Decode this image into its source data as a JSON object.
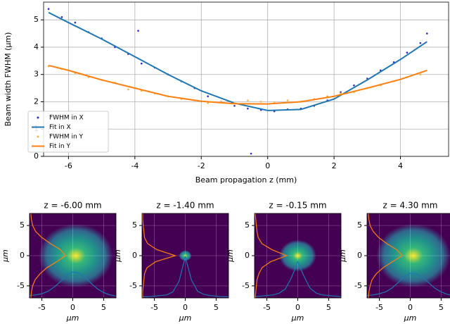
{
  "chart_data": [
    {
      "type": "scatter",
      "xlabel": "Beam propagation z (mm)",
      "ylabel": "Beam width FWHM (μm)",
      "xlim": [
        -6.75,
        5.45
      ],
      "ylim": [
        0,
        5.65
      ],
      "xticks": [
        -6,
        -4,
        -2,
        0,
        2,
        4
      ],
      "yticks": [
        0,
        1,
        2,
        3,
        4,
        5
      ],
      "grid": true,
      "legend": "lower left",
      "series": [
        {
          "name": "FWHM in X",
          "style": "dots",
          "color": "#2a2ad0",
          "x": [
            -6.6,
            -6.2,
            -5.8,
            -5.4,
            -5,
            -4.6,
            -4.2,
            -3.9,
            -3.8,
            -3.4,
            -3,
            -2.6,
            -2.2,
            -1.8,
            -1.4,
            -1,
            -0.6,
            -0.5,
            -0.2,
            0.2,
            0.6,
            1,
            1.4,
            1.8,
            2.2,
            2.6,
            3,
            3.4,
            3.8,
            4.2,
            4.6,
            4.8
          ],
          "values": [
            5.4,
            5.1,
            4.9,
            4.55,
            4.32,
            4.0,
            3.75,
            4.6,
            3.4,
            3.25,
            3.0,
            2.75,
            2.5,
            2.2,
            2.0,
            1.85,
            1.75,
            0.1,
            1.7,
            1.65,
            1.72,
            1.75,
            1.85,
            2.05,
            2.35,
            2.6,
            2.85,
            3.15,
            3.45,
            3.8,
            4.15,
            4.5
          ]
        },
        {
          "name": "Fit in X",
          "style": "line",
          "color": "#1f77b4",
          "x": [
            -6.6,
            -6,
            -5,
            -4,
            -3,
            -2,
            -1,
            0,
            1,
            2,
            3,
            4,
            4.8
          ],
          "values": [
            5.27,
            4.9,
            4.3,
            3.65,
            3.0,
            2.4,
            1.95,
            1.68,
            1.72,
            2.1,
            2.8,
            3.55,
            4.2
          ]
        },
        {
          "name": "FWHM in Y",
          "style": "dots",
          "color": "#ffb040",
          "x": [
            -6.6,
            -6.2,
            -5.8,
            -5.4,
            -5,
            -4.6,
            -4.2,
            -3.8,
            -3.4,
            -3,
            -2.6,
            -2.2,
            -1.8,
            -1.4,
            -1,
            -0.6,
            -0.2,
            0.2,
            0.6,
            1,
            1.4,
            1.8,
            2.2,
            2.6,
            3,
            3.4,
            3.8,
            4.2,
            4.6
          ],
          "values": [
            3.3,
            3.2,
            3.05,
            2.9,
            2.8,
            2.7,
            2.45,
            2.4,
            2.3,
            2.2,
            2.1,
            2.05,
            1.95,
            2.0,
            1.95,
            2.05,
            2.0,
            1.98,
            2.05,
            2.0,
            2.1,
            2.2,
            2.3,
            2.35,
            2.5,
            2.6,
            2.75,
            2.9,
            3.0
          ]
        },
        {
          "name": "Fit in Y",
          "style": "line",
          "color": "#ff7f0e",
          "x": [
            -6.6,
            -6,
            -5,
            -4,
            -3,
            -2,
            -1,
            0,
            1,
            2,
            3,
            4,
            4.8
          ],
          "values": [
            3.33,
            3.15,
            2.8,
            2.5,
            2.2,
            2.02,
            1.93,
            1.92,
            2.0,
            2.2,
            2.5,
            2.82,
            3.15
          ]
        }
      ]
    },
    {
      "type": "heatmap",
      "title": "z = -6.00 mm",
      "xlabel": "μm",
      "ylabel": "μm",
      "xlim": [
        -7,
        7
      ],
      "ylim": [
        -7,
        7
      ],
      "xticks": [
        -5,
        0,
        5
      ],
      "yticks": [
        -5,
        0,
        5
      ],
      "grid": true,
      "series": [
        {
          "color": "#1f77b4",
          "x": [
            -7,
            -6,
            -5,
            -4,
            -3,
            -2,
            -1,
            0,
            1,
            2,
            3,
            4,
            5,
            6,
            7
          ],
          "values": [
            -6.6,
            -6.5,
            -6.3,
            -5.9,
            -5.2,
            -4.3,
            -3.2,
            -2.7,
            -2.9,
            -3.6,
            -4.6,
            -5.5,
            -6.1,
            -6.5,
            -6.7
          ]
        },
        {
          "color": "#ff7f0e",
          "y": [
            -7,
            -6,
            -5,
            -4,
            -3,
            -2,
            -1,
            0,
            1,
            2,
            3,
            4,
            5,
            6,
            7
          ],
          "values": [
            -6.8,
            -6.7,
            -6.5,
            -6.1,
            -5.3,
            -4.2,
            -2.6,
            -1.2,
            -2.0,
            -3.6,
            -5.0,
            -6.0,
            -6.5,
            -6.7,
            -6.8
          ]
        }
      ]
    },
    {
      "type": "heatmap",
      "title": "z = -1.40 mm",
      "xlabel": "μm",
      "ylabel": "μm",
      "xlim": [
        -7,
        7
      ],
      "ylim": [
        -7,
        7
      ],
      "xticks": [
        -5,
        0,
        5
      ],
      "yticks": [
        -5,
        0,
        5
      ],
      "grid": true,
      "series": [
        {
          "color": "#1f77b4",
          "x": [
            -7,
            -6,
            -5,
            -4,
            -3,
            -2,
            -1,
            0,
            1,
            2,
            3,
            4,
            5,
            6,
            7
          ],
          "values": [
            -6.8,
            -6.8,
            -6.7,
            -6.6,
            -6.5,
            -6.0,
            -4.2,
            -0.2,
            -4.0,
            -5.9,
            -6.4,
            -6.6,
            -6.7,
            -6.8,
            -6.8
          ]
        },
        {
          "color": "#ff7f0e",
          "y": [
            -7,
            -6,
            -5,
            -4,
            -3,
            -2,
            -1,
            0,
            1,
            2,
            3,
            4,
            5,
            6,
            7
          ],
          "values": [
            -6.9,
            -6.9,
            -6.8,
            -6.7,
            -6.6,
            -6.2,
            -4.8,
            -1.6,
            -4.6,
            -6.1,
            -6.6,
            -6.7,
            -6.8,
            -6.9,
            -6.9
          ]
        }
      ]
    },
    {
      "type": "heatmap",
      "title": "z = -0.15 mm",
      "xlabel": "μm",
      "ylabel": "μm",
      "xlim": [
        -7,
        7
      ],
      "ylim": [
        -7,
        7
      ],
      "xticks": [
        -5,
        0,
        5
      ],
      "yticks": [
        -5,
        0,
        5
      ],
      "grid": true,
      "series": [
        {
          "color": "#1f77b4",
          "x": [
            -7,
            -6,
            -5,
            -4,
            -3,
            -2,
            -1,
            0,
            1,
            2,
            3,
            4,
            5,
            6,
            7
          ],
          "values": [
            -6.8,
            -6.7,
            -6.6,
            -6.5,
            -6.2,
            -5.5,
            -3.6,
            -1.0,
            -3.4,
            -5.4,
            -6.2,
            -6.5,
            -6.6,
            -6.7,
            -6.8
          ]
        },
        {
          "color": "#ff7f0e",
          "y": [
            -7,
            -6,
            -5,
            -4,
            -3,
            -2,
            -1,
            0,
            1,
            2,
            3,
            4,
            5,
            6,
            7
          ],
          "values": [
            -6.9,
            -6.8,
            -6.7,
            -6.6,
            -6.3,
            -5.8,
            -4.4,
            -1.8,
            -4.2,
            -5.8,
            -6.4,
            -6.6,
            -6.7,
            -6.8,
            -6.9
          ]
        }
      ]
    },
    {
      "type": "heatmap",
      "title": "z = 4.30 mm",
      "xlabel": "μm",
      "ylabel": "μm",
      "xlim": [
        -7,
        7
      ],
      "ylim": [
        -7,
        7
      ],
      "xticks": [
        -5,
        0,
        5
      ],
      "yticks": [
        -5,
        0,
        5
      ],
      "grid": true,
      "series": [
        {
          "color": "#1f77b4",
          "x": [
            -7,
            -6,
            -5,
            -4,
            -3,
            -2,
            -1,
            0,
            1,
            2,
            3,
            4,
            5,
            6,
            7
          ],
          "values": [
            -6.6,
            -6.5,
            -6.3,
            -6.0,
            -5.4,
            -4.5,
            -3.5,
            -2.9,
            -3.0,
            -3.6,
            -4.5,
            -5.4,
            -6.0,
            -6.4,
            -6.6
          ]
        },
        {
          "color": "#ff7f0e",
          "y": [
            -7,
            -6,
            -5,
            -4,
            -3,
            -2,
            -1,
            0,
            1,
            2,
            3,
            4,
            5,
            6,
            7
          ],
          "values": [
            -6.8,
            -6.7,
            -6.5,
            -6.2,
            -5.5,
            -4.4,
            -2.9,
            -1.3,
            -2.2,
            -3.8,
            -5.1,
            -6.0,
            -6.5,
            -6.7,
            -6.8
          ]
        }
      ]
    }
  ]
}
